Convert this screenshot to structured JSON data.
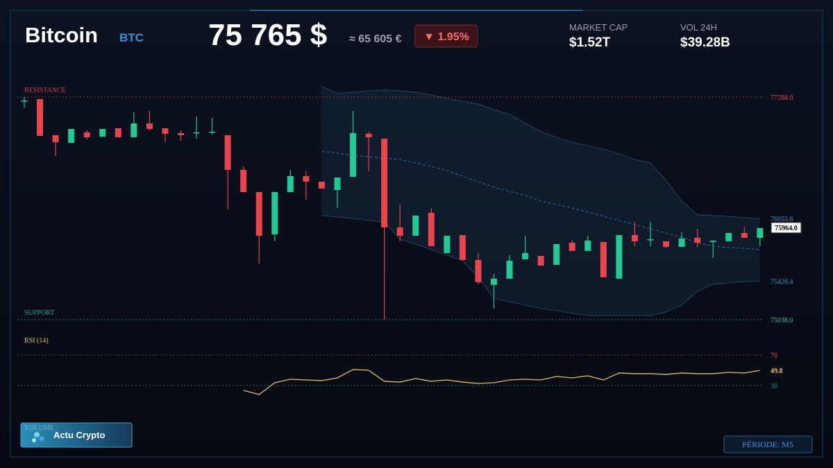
{
  "header": {
    "name": "Bitcoin",
    "symbol": "BTC",
    "price": "75 765 $",
    "price_eur": "≈ 65 605 €",
    "change": "▼ 1.95%",
    "market_cap_label": "MARKET CAP",
    "market_cap": "$1.52T",
    "volume_label": "VOL 24H",
    "volume": "$39.28B"
  },
  "chart_data": {
    "type": "candlestick",
    "ylim": [
      74950,
      77450
    ],
    "colors": {
      "up": "#22c993",
      "down": "#e8464c",
      "band": "#2d5a80",
      "middle": "#3a7fc0",
      "rsi": "#e8c060"
    },
    "candles": {
      "open": [
        77246,
        77267,
        76903,
        76825,
        76931,
        76888,
        76973,
        76882,
        77022,
        76973,
        76924,
        76924,
        76931,
        76903,
        76552,
        76328,
        75900,
        76328,
        76489,
        76433,
        76349,
        76482,
        76917,
        76868,
        75970,
        75886,
        76118,
        75711,
        75893,
        75641,
        75389,
        75452,
        75648,
        75683,
        75592,
        75816,
        75732,
        75823,
        75452,
        75893,
        75844,
        75830,
        75774,
        75865,
        75823,
        75830,
        75914,
        75865
      ],
      "high": [
        77288,
        77267,
        76903,
        76966,
        76952,
        76966,
        76973,
        77134,
        77148,
        76973,
        76952,
        77092,
        77078,
        76903,
        76587,
        76328,
        76328,
        76552,
        76538,
        76433,
        76475,
        77148,
        76938,
        76868,
        76202,
        76090,
        76167,
        75886,
        75893,
        75711,
        75501,
        75690,
        75886,
        75683,
        75802,
        75844,
        75886,
        75823,
        75893,
        76026,
        76026,
        75830,
        75921,
        75956,
        75837,
        75914,
        75970,
        75964
      ],
      "low": [
        77183,
        76896,
        76692,
        76825,
        76861,
        76888,
        76882,
        76882,
        76952,
        76832,
        76846,
        76868,
        76910,
        76153,
        76328,
        75606,
        75830,
        76328,
        76251,
        76363,
        76167,
        76482,
        76538,
        75038,
        75830,
        75886,
        75781,
        75711,
        75641,
        75396,
        75150,
        75452,
        75648,
        75585,
        75592,
        75732,
        75732,
        75466,
        75452,
        75781,
        75781,
        75760,
        75774,
        75774,
        75662,
        75830,
        75865,
        75781
      ],
      "close": [
        77253,
        76896,
        76832,
        76966,
        76882,
        76966,
        76882,
        77022,
        76966,
        76917,
        76903,
        76931,
        76938,
        76552,
        76328,
        75886,
        76328,
        76489,
        76433,
        76363,
        76475,
        76924,
        76882,
        75970,
        75886,
        76090,
        75781,
        75886,
        75641,
        75417,
        75452,
        75634,
        75711,
        75585,
        75802,
        75732,
        75837,
        75466,
        75893,
        75830,
        75851,
        75774,
        75858,
        75816,
        75837,
        75914,
        75865,
        75964
      ]
    },
    "last_price_label": "75964.0",
    "bands": {
      "upper": [
        null,
        null,
        null,
        null,
        null,
        null,
        null,
        null,
        null,
        null,
        null,
        null,
        null,
        null,
        null,
        null,
        null,
        null,
        null,
        77393,
        77323,
        77337,
        77351,
        77358,
        77351,
        77337,
        77309,
        77274,
        77246,
        77218,
        77162,
        77113,
        77022,
        76938,
        76882,
        76832,
        76797,
        76762,
        76713,
        76657,
        76622,
        76447,
        76237,
        76097,
        76090,
        76083,
        76069,
        76055.6
      ],
      "middle": [
        null,
        null,
        null,
        null,
        null,
        null,
        null,
        null,
        null,
        null,
        null,
        null,
        null,
        null,
        null,
        null,
        null,
        null,
        null,
        76741,
        76720,
        76699,
        76685,
        76671,
        76657,
        76622,
        76587,
        76545,
        76489,
        76433,
        76377,
        76335,
        76293,
        76237,
        76202,
        76167,
        76125,
        76083,
        76040,
        75998,
        75956,
        75914,
        75872,
        75816,
        75781,
        75767,
        75760,
        75746
      ],
      "lower": [
        null,
        null,
        null,
        null,
        null,
        null,
        null,
        null,
        null,
        null,
        null,
        null,
        null,
        null,
        null,
        null,
        null,
        null,
        null,
        76090,
        76076,
        76062,
        76040,
        76026,
        75851,
        75802,
        75746,
        75690,
        75634,
        75466,
        75255,
        75220,
        75185,
        75150,
        75129,
        75101,
        75080,
        75080,
        75080,
        75080,
        75080,
        75115,
        75185,
        75325,
        75396,
        75410,
        75424,
        75428.4
      ]
    },
    "resistance": {
      "label": "RESISTANCE",
      "value": 77288,
      "value_label": "77288.0"
    },
    "support": {
      "label": "SUPPORT",
      "value": 75038,
      "value_label": "75038.0"
    },
    "rsi": {
      "label": "RSI (14)",
      "ylim": [
        10,
        80
      ],
      "yticks": [
        70,
        30
      ],
      "values": [
        null,
        null,
        null,
        null,
        null,
        null,
        null,
        null,
        null,
        null,
        null,
        null,
        null,
        null,
        23.6,
        18.2,
        33.6,
        38.2,
        37.3,
        36.4,
        40.0,
        50.9,
        50.0,
        35.5,
        34.5,
        39.1,
        35.5,
        37.3,
        34.5,
        32.7,
        33.6,
        37.3,
        38.2,
        37.3,
        41.8,
        40.0,
        42.7,
        37.3,
        46.4,
        45.5,
        45.5,
        44.5,
        46.4,
        45.5,
        45.5,
        47.3,
        46.4,
        49.8
      ]
    }
  },
  "footer": {
    "badge_caption": "VOLUME",
    "badge": "Actu Crypto",
    "period": "PÉRIODE: M5"
  }
}
